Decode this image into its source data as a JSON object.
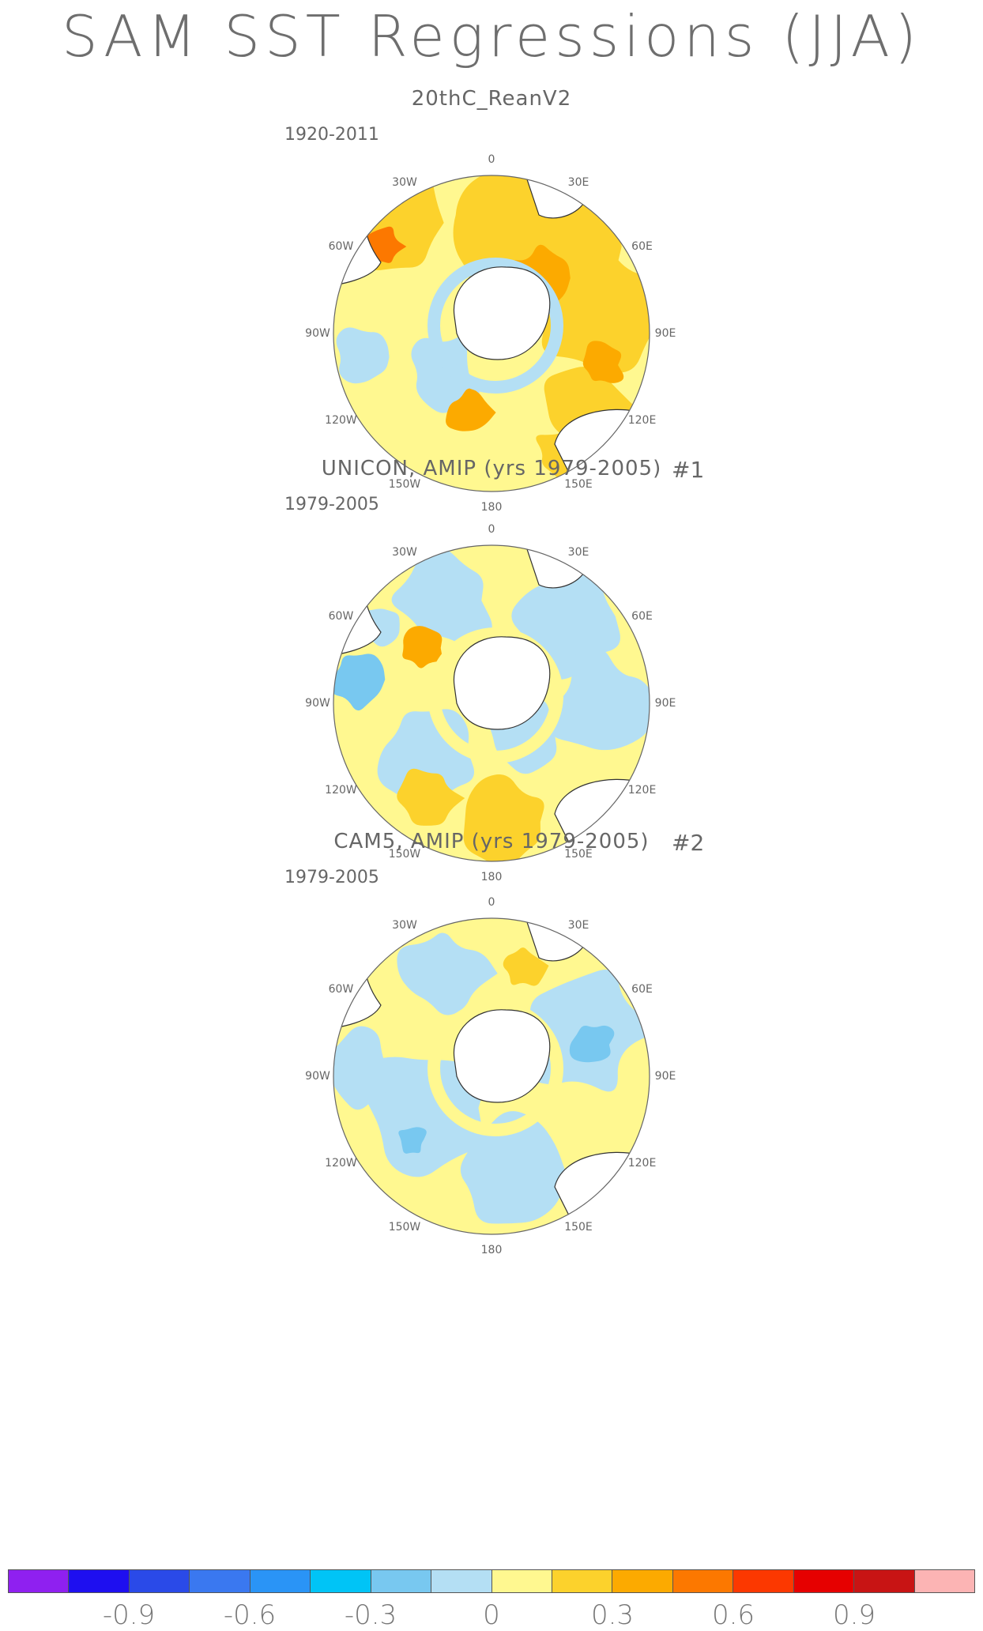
{
  "title": "SAM SST Regressions (JJA)",
  "panels": [
    {
      "title": "20thC_ReanV2",
      "tag": "",
      "period": "1920-2011",
      "scheme": "warm"
    },
    {
      "title": "UNICON, AMIP (yrs 1979-2005)",
      "tag": "#1",
      "period": "1979-2005",
      "scheme": "mixed"
    },
    {
      "title": "CAM5, AMIP (yrs 1979-2005)",
      "tag": "#2",
      "period": "1979-2005",
      "scheme": "cool"
    }
  ],
  "longitude_labels": [
    "0",
    "30E",
    "60E",
    "90E",
    "120E",
    "150E",
    "180",
    "150W",
    "120W",
    "90W",
    "60W",
    "30W"
  ],
  "colorbar": {
    "colors": [
      "#8f20f0",
      "#1e0ff0",
      "#2a4ae8",
      "#3a78f0",
      "#2a94f6",
      "#00c4f6",
      "#78c8f0",
      "#b4dff4",
      "#fff890",
      "#fcd22c",
      "#fcaa00",
      "#fc7800",
      "#fc3800",
      "#e60000",
      "#c81414",
      "#fcb4b4"
    ],
    "labels": [
      "-0.9",
      "-0.6",
      "-0.3",
      "0",
      "0.3",
      "0.6",
      "0.9"
    ]
  },
  "legend_colors": {
    "land": "#ffffff",
    "coast": "#333333",
    "yellow": "#fff890",
    "light_blue": "#b4dff4",
    "mid_blue": "#78c8f0",
    "orange_light": "#fcd22c",
    "orange": "#fcaa00",
    "red_orange": "#fc7800",
    "red": "#e60000"
  }
}
